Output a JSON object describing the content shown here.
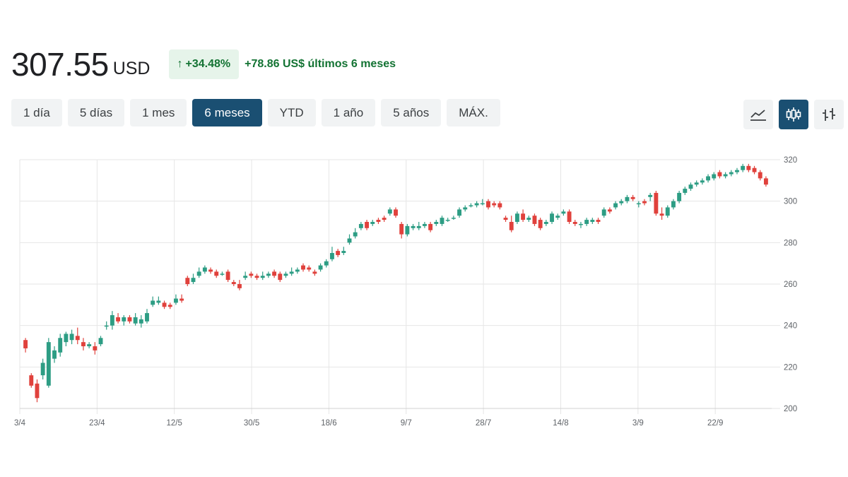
{
  "header": {
    "price": "307.55",
    "currency": "USD",
    "change_arrow": "↑",
    "change_pct": "+34.48%",
    "change_abs": "+78.86 US$ últimos 6 meses"
  },
  "ranges": [
    {
      "label": "1 día",
      "active": false
    },
    {
      "label": "5 días",
      "active": false
    },
    {
      "label": "1 mes",
      "active": false
    },
    {
      "label": "6 meses",
      "active": true
    },
    {
      "label": "YTD",
      "active": false
    },
    {
      "label": "1 año",
      "active": false
    },
    {
      "label": "5 años",
      "active": false
    },
    {
      "label": "MÁX.",
      "active": false
    }
  ],
  "chart_types": [
    {
      "icon": "line-chart-icon",
      "active": false
    },
    {
      "icon": "candlestick-icon",
      "active": true
    },
    {
      "icon": "ohlc-bars-icon",
      "active": false
    }
  ],
  "colors": {
    "up": "#2d9d84",
    "down": "#e0413c",
    "grid": "#e6e6e6",
    "active": "#1a4f72"
  },
  "chart_data": {
    "type": "candlestick",
    "x_ticks": [
      "3/4",
      "23/4",
      "12/5",
      "30/5",
      "18/6",
      "9/7",
      "28/7",
      "14/8",
      "3/9",
      "22/9"
    ],
    "y_ticks": [
      200,
      220,
      240,
      260,
      280,
      300,
      320
    ],
    "ylim": [
      200,
      320
    ],
    "grid": true,
    "y_axis_position": "right",
    "ohlc": [
      [
        233,
        229,
        234,
        227
      ],
      [
        216,
        211,
        217,
        210
      ],
      [
        212,
        205,
        214,
        203
      ],
      [
        216,
        222,
        224,
        214
      ],
      [
        211,
        232,
        234,
        210
      ],
      [
        224,
        228,
        230,
        222
      ],
      [
        227,
        234,
        236,
        225
      ],
      [
        232,
        236,
        237,
        230
      ],
      [
        233,
        236,
        238,
        231
      ],
      [
        235,
        233,
        239,
        231
      ],
      [
        232,
        230,
        234,
        228
      ],
      [
        230,
        231,
        232,
        229
      ],
      [
        230,
        228,
        232,
        226
      ],
      [
        231,
        234,
        235,
        230
      ],
      [
        240,
        240,
        242,
        238
      ],
      [
        240,
        245,
        247,
        238
      ],
      [
        244,
        242,
        246,
        241
      ],
      [
        242,
        244,
        245,
        240
      ],
      [
        244,
        242,
        245,
        241
      ],
      [
        241,
        244,
        246,
        240
      ],
      [
        241,
        243,
        245,
        239
      ],
      [
        242,
        246,
        248,
        241
      ],
      [
        250,
        252,
        254,
        249
      ],
      [
        251,
        252,
        254,
        250
      ],
      [
        251,
        249,
        252,
        248
      ],
      [
        250,
        249,
        251,
        248
      ],
      [
        251,
        253,
        255,
        250
      ],
      [
        253,
        252,
        255,
        251
      ],
      [
        263,
        260,
        264,
        259
      ],
      [
        261,
        263,
        265,
        260
      ],
      [
        264,
        266,
        268,
        263
      ],
      [
        266,
        268,
        269,
        265
      ],
      [
        267,
        266,
        268,
        265
      ],
      [
        266,
        264,
        267,
        263
      ],
      [
        265,
        265,
        266,
        264
      ],
      [
        266,
        262,
        267,
        261
      ],
      [
        261,
        260,
        262,
        259
      ],
      [
        260,
        258,
        262,
        257
      ],
      [
        263,
        264,
        266,
        262
      ],
      [
        265,
        264,
        266,
        263
      ],
      [
        264,
        263,
        265,
        262
      ],
      [
        263,
        264,
        266,
        262
      ],
      [
        264,
        265,
        266,
        263
      ],
      [
        266,
        264,
        267,
        263
      ],
      [
        265,
        262,
        266,
        261
      ],
      [
        264,
        265,
        266,
        263
      ],
      [
        265,
        266,
        268,
        264
      ],
      [
        266,
        267,
        268,
        265
      ],
      [
        269,
        267,
        270,
        266
      ],
      [
        268,
        267,
        269,
        266
      ],
      [
        266,
        265,
        267,
        264
      ],
      [
        267,
        269,
        270,
        266
      ],
      [
        269,
        271,
        272,
        268
      ],
      [
        272,
        275,
        278,
        271
      ],
      [
        276,
        274,
        277,
        273
      ],
      [
        275,
        276,
        278,
        274
      ],
      [
        280,
        282,
        284,
        279
      ],
      [
        283,
        285,
        287,
        282
      ],
      [
        287,
        289,
        290,
        286
      ],
      [
        290,
        287,
        291,
        286
      ],
      [
        289,
        290,
        291,
        288
      ],
      [
        291,
        290,
        292,
        289
      ],
      [
        292,
        291,
        293,
        290
      ],
      [
        294,
        296,
        297,
        293
      ],
      [
        296,
        293,
        297,
        292
      ],
      [
        289,
        284,
        290,
        282
      ],
      [
        284,
        288,
        289,
        283
      ],
      [
        287,
        288,
        289,
        286
      ],
      [
        287,
        288,
        290,
        286
      ],
      [
        288,
        289,
        290,
        287
      ],
      [
        289,
        286,
        290,
        285
      ],
      [
        289,
        290,
        291,
        288
      ],
      [
        289,
        292,
        293,
        288
      ],
      [
        291,
        291,
        292,
        290
      ],
      [
        292,
        292,
        293,
        291
      ],
      [
        293,
        296,
        297,
        292
      ],
      [
        296,
        297,
        298,
        295
      ],
      [
        298,
        298,
        299,
        297
      ],
      [
        298,
        299,
        300,
        297
      ],
      [
        299,
        299,
        301,
        298
      ],
      [
        300,
        297,
        301,
        296
      ],
      [
        299,
        298,
        300,
        297
      ],
      [
        299,
        297,
        300,
        296
      ],
      [
        292,
        291,
        293,
        290
      ],
      [
        290,
        286,
        293,
        285
      ],
      [
        290,
        294,
        295,
        289
      ],
      [
        294,
        291,
        296,
        290
      ],
      [
        291,
        292,
        293,
        290
      ],
      [
        293,
        289,
        294,
        288
      ],
      [
        291,
        287,
        292,
        286
      ],
      [
        289,
        290,
        291,
        288
      ],
      [
        290,
        294,
        295,
        289
      ],
      [
        292,
        293,
        294,
        291
      ],
      [
        294,
        295,
        296,
        293
      ],
      [
        295,
        290,
        296,
        289
      ],
      [
        290,
        289,
        291,
        288
      ],
      [
        289,
        289,
        290,
        287
      ],
      [
        289,
        291,
        292,
        288
      ],
      [
        290,
        291,
        292,
        289
      ],
      [
        291,
        290,
        292,
        289
      ],
      [
        293,
        296,
        297,
        292
      ],
      [
        296,
        295,
        297,
        294
      ],
      [
        297,
        299,
        300,
        296
      ],
      [
        299,
        300,
        301,
        298
      ],
      [
        300,
        302,
        303,
        299
      ],
      [
        302,
        301,
        303,
        300
      ],
      [
        299,
        299,
        300,
        297
      ],
      [
        300,
        299,
        301,
        298
      ],
      [
        302,
        303,
        304,
        300
      ],
      [
        304,
        294,
        305,
        293
      ],
      [
        294,
        293,
        297,
        291
      ],
      [
        293,
        297,
        298,
        292
      ],
      [
        297,
        300,
        301,
        296
      ],
      [
        300,
        304,
        305,
        299
      ],
      [
        304,
        306,
        307,
        303
      ],
      [
        306,
        308,
        309,
        305
      ],
      [
        308,
        309,
        310,
        307
      ],
      [
        309,
        310,
        311,
        308
      ],
      [
        310,
        312,
        313,
        309
      ],
      [
        311,
        313,
        314,
        310
      ],
      [
        314,
        312,
        315,
        311
      ],
      [
        312,
        313,
        314,
        311
      ],
      [
        313,
        314,
        315,
        312
      ],
      [
        314,
        315,
        316,
        313
      ],
      [
        315,
        317,
        318,
        314
      ],
      [
        317,
        315,
        318,
        314
      ],
      [
        316,
        314,
        317,
        313
      ],
      [
        314,
        311,
        315,
        310
      ],
      [
        311,
        308,
        312,
        307
      ]
    ]
  }
}
